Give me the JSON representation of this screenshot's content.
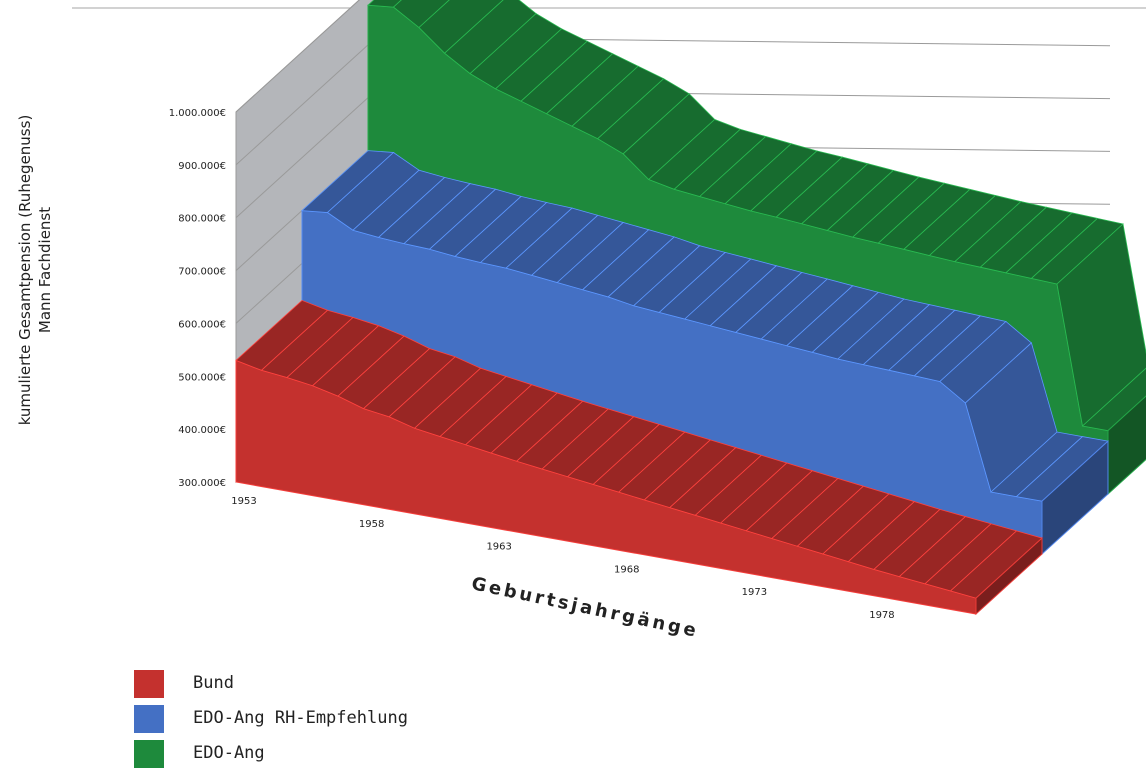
{
  "chart_data": {
    "type": "area",
    "title": "",
    "ylabel": "kumulierte Gesamtpension (Ruhegenuss)\nMann Fachdienst",
    "xlabel": "Geburtsjahrgänge",
    "ylim": [
      300000,
      1000000
    ],
    "y_ticks": [
      "300.000€",
      "400.000€",
      "500.000€",
      "600.000€",
      "700.000€",
      "800.000€",
      "900.000€",
      "1.000.000€"
    ],
    "x_tick_labels": [
      "1953",
      "1958",
      "1963",
      "1968",
      "1973",
      "1978"
    ],
    "x": [
      1953,
      1954,
      1955,
      1956,
      1957,
      1958,
      1959,
      1960,
      1961,
      1962,
      1963,
      1964,
      1965,
      1966,
      1967,
      1968,
      1969,
      1970,
      1971,
      1972,
      1973,
      1974,
      1975,
      1976,
      1977,
      1978,
      1979,
      1980,
      1981,
      1982
    ],
    "series": [
      {
        "name": "EDO-Ang",
        "color": "#1e8a3c",
        "values": [
          975000,
          980000,
          950000,
          910000,
          880000,
          860000,
          845000,
          830000,
          815000,
          800000,
          780000,
          740000,
          730000,
          725000,
          720000,
          715000,
          712000,
          708000,
          704000,
          700000,
          697000,
          694000,
          691000,
          688000,
          686000,
          684000,
          682000,
          680000,
          420000,
          420000
        ]
      },
      {
        "name": "EDO-Ang RH-Empfehlung",
        "color": "#4470c4",
        "values": [
          700000,
          705000,
          680000,
          675000,
          672000,
          670000,
          665000,
          662000,
          660000,
          655000,
          650000,
          645000,
          640000,
          632000,
          628000,
          624000,
          620000,
          616000,
          612000,
          608000,
          604000,
          600000,
          598000,
          596000,
          594000,
          592000,
          560000,
          400000,
          400000,
          400000
        ]
      },
      {
        "name": "Bund",
        "color": "#c4312e",
        "values": [
          530000,
          520000,
          515000,
          508000,
          497000,
          482000,
          475000,
          462000,
          455000,
          448000,
          441000,
          434000,
          428000,
          422000,
          416000,
          410000,
          404000,
          398000,
          392000,
          386000,
          380000,
          374000,
          368000,
          362000,
          356000,
          350000,
          345000,
          340000,
          335000,
          330000
        ]
      }
    ],
    "legend": [
      "Bund",
      "EDO-Ang RH-Empfehlung",
      "EDO-Ang"
    ],
    "legend_position": "bottom-left",
    "grid": true,
    "style": "3d-stacked-ribbon"
  },
  "legend": {
    "items": [
      {
        "label": "Bund",
        "color": "#c4312e"
      },
      {
        "label": "EDO-Ang RH-Empfehlung",
        "color": "#4470c4"
      },
      {
        "label": "EDO-Ang",
        "color": "#1e8a3c"
      }
    ]
  }
}
